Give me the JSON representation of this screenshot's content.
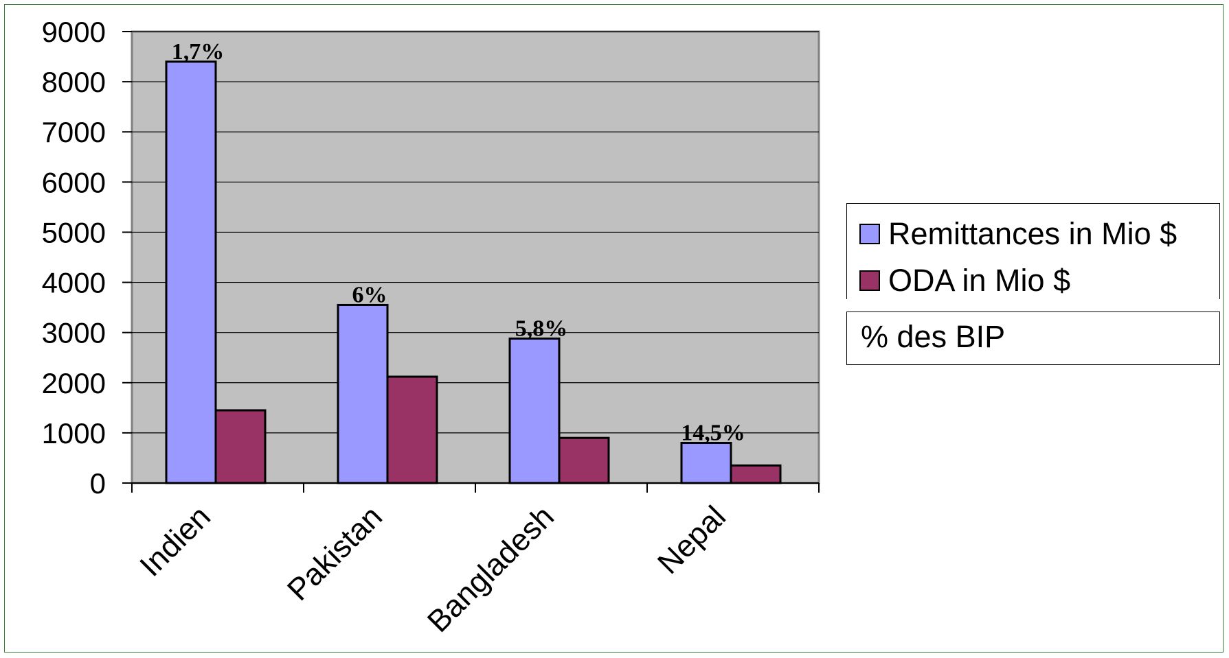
{
  "chart_data": {
    "type": "bar",
    "categories": [
      "Indien",
      "Pakistan",
      "Bangladesh",
      "Nepal"
    ],
    "series": [
      {
        "name": "Remittances in Mio $",
        "values": [
          8400,
          3550,
          2880,
          800
        ],
        "color": "#9999ff"
      },
      {
        "name": "ODA in Mio $",
        "values": [
          1450,
          2120,
          900,
          350
        ],
        "color": "#993366"
      }
    ],
    "data_labels": [
      "1,7%",
      "6%",
      "5,8%",
      "14,5%"
    ],
    "yticks": [
      "0",
      "1000",
      "2000",
      "3000",
      "4000",
      "5000",
      "6000",
      "7000",
      "8000",
      "9000"
    ],
    "ylim": [
      0,
      9000
    ],
    "grid": true,
    "plot_background": "#c0c0c0",
    "legend_position": "right",
    "legend_note": "% des BIP"
  }
}
